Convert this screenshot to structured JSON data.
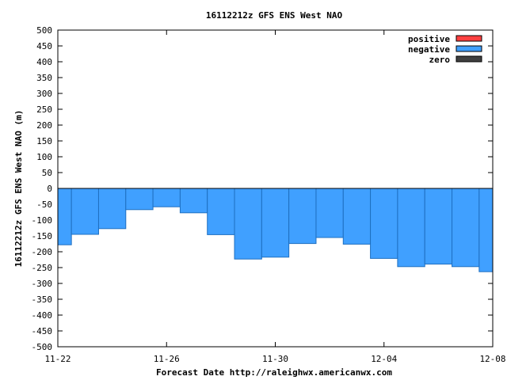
{
  "chart_data": {
    "type": "bar",
    "title": "16112212z GFS ENS West NAO",
    "xlabel": "Forecast Date http://raleighwx.americanwx.com",
    "ylabel": "16112212z GFS ENS West NAO (m)",
    "ylim": [
      -500,
      500
    ],
    "y_ticks": [
      500,
      450,
      400,
      350,
      300,
      250,
      200,
      150,
      100,
      50,
      0,
      -50,
      -100,
      -150,
      -200,
      -250,
      -300,
      -350,
      -400,
      -450,
      -500
    ],
    "x_range": [
      "2016-11-22",
      "2016-12-08"
    ],
    "x_ticks": [
      {
        "date": "2016-11-22",
        "label": "11-22"
      },
      {
        "date": "2016-11-26",
        "label": "11-26"
      },
      {
        "date": "2016-11-30",
        "label": "11-30"
      },
      {
        "date": "2016-12-04",
        "label": "12-04"
      },
      {
        "date": "2016-12-08",
        "label": "12-08"
      }
    ],
    "legend_position": "top-right",
    "legend": [
      {
        "label": "positive",
        "color": "#ff4040"
      },
      {
        "label": "negative",
        "color": "#40a0ff"
      },
      {
        "label": "zero",
        "color": "#404040"
      }
    ],
    "bar_start": "2016-11-22",
    "series": [
      {
        "name": "negative",
        "x": [
          "2016-11-22",
          "2016-11-23",
          "2016-11-24",
          "2016-11-25",
          "2016-11-26",
          "2016-11-27",
          "2016-11-28",
          "2016-11-29",
          "2016-11-30",
          "2016-12-01",
          "2016-12-02",
          "2016-12-03",
          "2016-12-04",
          "2016-12-05",
          "2016-12-06",
          "2016-12-07",
          "2016-12-08"
        ],
        "values": [
          -178,
          -145,
          -127,
          -67,
          -58,
          -77,
          -146,
          -223,
          -217,
          -174,
          -155,
          -176,
          -221,
          -247,
          -239,
          -247,
          -263
        ]
      }
    ]
  }
}
